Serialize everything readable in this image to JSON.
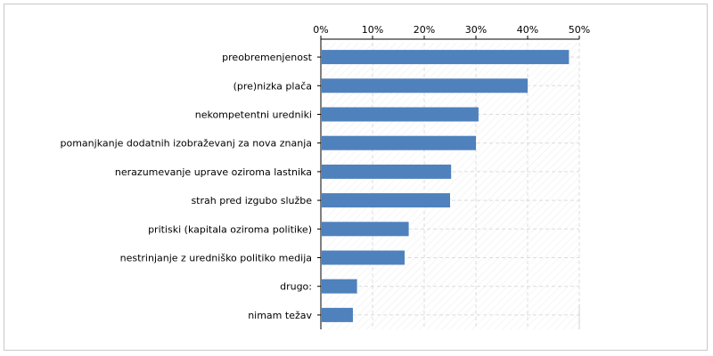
{
  "chart_data": {
    "type": "bar",
    "orientation": "horizontal",
    "title": "",
    "xlabel": "",
    "ylabel": "",
    "xlim": [
      0,
      50
    ],
    "x_ticks": [
      "0%",
      "10%",
      "20%",
      "30%",
      "40%",
      "50%"
    ],
    "tick_values": [
      0,
      10,
      20,
      30,
      40,
      50
    ],
    "grid": true,
    "legend": "none",
    "bar_color": "#4f81bd",
    "categories": [
      "preobremenjenost",
      "(pre)nizka plača",
      "nekompetentni uredniki",
      "pomanjkanje dodatnih izobraževanj za nova znanja",
      "nerazumevanje uprave oziroma lastnika",
      "strah pred izgubo službe",
      "pritiski (kapitala oziroma politike)",
      "nestrinjanje z uredniško politiko medija",
      "drugo:",
      "nimam težav"
    ],
    "values": [
      48,
      40,
      30.5,
      30,
      25.2,
      25,
      17,
      16.2,
      7,
      6.2
    ]
  }
}
